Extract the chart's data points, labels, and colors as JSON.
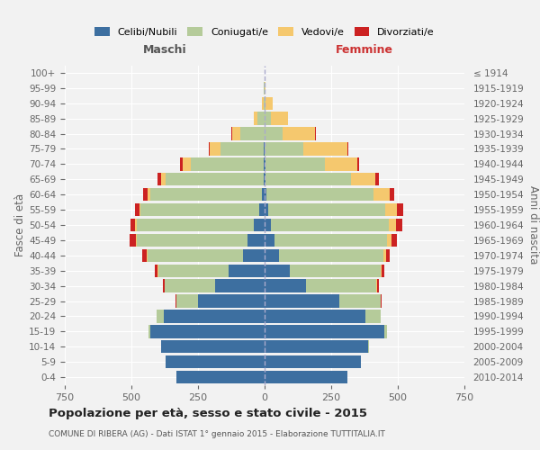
{
  "age_groups": [
    "0-4",
    "5-9",
    "10-14",
    "15-19",
    "20-24",
    "25-29",
    "30-34",
    "35-39",
    "40-44",
    "45-49",
    "50-54",
    "55-59",
    "60-64",
    "65-69",
    "70-74",
    "75-79",
    "80-84",
    "85-89",
    "90-94",
    "95-99",
    "100+"
  ],
  "birth_years": [
    "2010-2014",
    "2005-2009",
    "2000-2004",
    "1995-1999",
    "1990-1994",
    "1985-1989",
    "1980-1984",
    "1975-1979",
    "1970-1974",
    "1965-1969",
    "1960-1964",
    "1955-1959",
    "1950-1954",
    "1945-1949",
    "1940-1944",
    "1935-1939",
    "1930-1934",
    "1925-1929",
    "1920-1924",
    "1915-1919",
    "≤ 1914"
  ],
  "male": {
    "celibi": [
      330,
      370,
      390,
      430,
      380,
      250,
      185,
      135,
      80,
      65,
      40,
      20,
      10,
      5,
      3,
      2,
      1,
      0,
      0,
      0,
      0
    ],
    "coniugati": [
      0,
      0,
      0,
      5,
      25,
      80,
      190,
      265,
      360,
      415,
      440,
      445,
      420,
      365,
      275,
      165,
      90,
      28,
      5,
      2,
      0
    ],
    "vedovi": [
      0,
      0,
      0,
      0,
      0,
      1,
      1,
      2,
      3,
      4,
      5,
      5,
      8,
      18,
      30,
      40,
      32,
      12,
      4,
      1,
      0
    ],
    "divorziati": [
      0,
      0,
      0,
      0,
      1,
      2,
      5,
      10,
      18,
      22,
      20,
      18,
      18,
      15,
      8,
      3,
      2,
      0,
      0,
      0,
      0
    ]
  },
  "female": {
    "nubili": [
      310,
      360,
      390,
      450,
      380,
      280,
      155,
      95,
      55,
      38,
      25,
      12,
      8,
      5,
      2,
      1,
      1,
      0,
      0,
      0,
      0
    ],
    "coniugate": [
      0,
      0,
      2,
      10,
      55,
      155,
      265,
      340,
      390,
      420,
      440,
      440,
      400,
      320,
      225,
      145,
      68,
      22,
      4,
      1,
      0
    ],
    "vedove": [
      0,
      0,
      0,
      0,
      1,
      2,
      3,
      5,
      10,
      18,
      28,
      45,
      60,
      90,
      120,
      165,
      120,
      65,
      25,
      4,
      1
    ],
    "divorziate": [
      0,
      0,
      0,
      0,
      1,
      3,
      5,
      8,
      14,
      22,
      25,
      22,
      18,
      15,
      8,
      4,
      2,
      1,
      0,
      0,
      0
    ]
  },
  "colors": {
    "celibi": "#3d6fa0",
    "coniugati": "#b5cb9a",
    "vedovi": "#f5c86e",
    "divorziati": "#cc2222"
  },
  "xlim": 750,
  "title": "Popolazione per età, sesso e stato civile - 2015",
  "subtitle": "COMUNE DI RIBERA (AG) - Dati ISTAT 1° gennaio 2015 - Elaborazione TUTTITALIA.IT",
  "xlabel_left": "Maschi",
  "xlabel_right": "Femmine",
  "ylabel_left": "Fasce di età",
  "ylabel_right": "Anni di nascita",
  "bg_color": "#f2f2f2",
  "grid_color": "#ffffff"
}
